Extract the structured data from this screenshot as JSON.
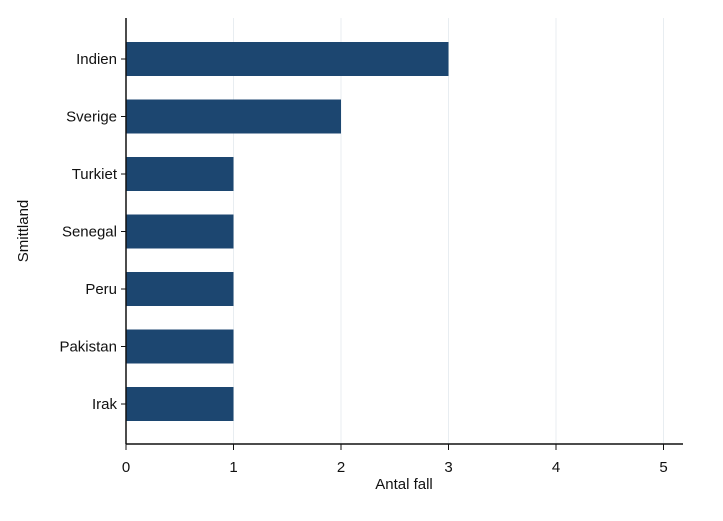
{
  "chart_data": {
    "type": "bar",
    "orientation": "horizontal",
    "categories": [
      "Indien",
      "Sverige",
      "Turkiet",
      "Senegal",
      "Peru",
      "Pakistan",
      "Irak"
    ],
    "values": [
      3,
      2,
      1,
      1,
      1,
      1,
      1
    ],
    "xlabel": "Antal fall",
    "ylabel": "Smittland",
    "xlim": [
      0,
      5
    ],
    "xticks": [
      "0",
      "1",
      "2",
      "3",
      "4",
      "5"
    ],
    "grid": "vertical",
    "bar_color": "#1c4670",
    "grid_color": "#e8edf1",
    "axis_color": "#111111"
  }
}
